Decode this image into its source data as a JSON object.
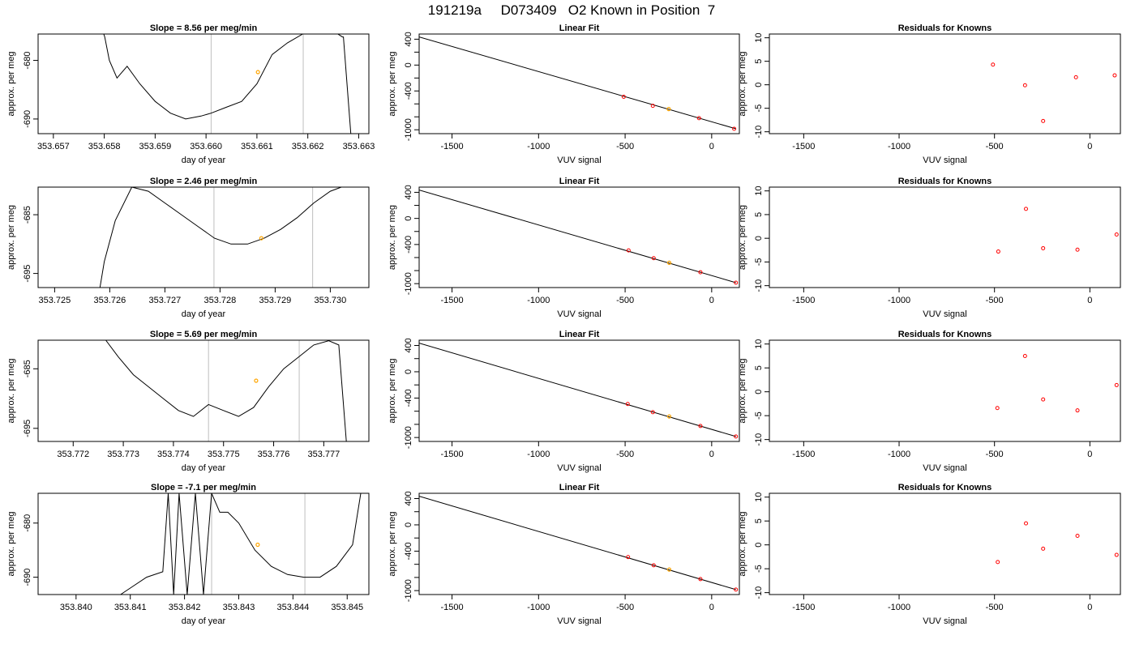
{
  "page_title": "191219a     D073409   O2 Known in Position  7",
  "colors": {
    "trace": "#000000",
    "fit_line": "#000000",
    "vline": "#bebebe",
    "known_point": "#ff0000",
    "unknown_point": "#ffa500",
    "axis": "#000000"
  },
  "chart_data": [
    {
      "id": "slope-1",
      "type": "line",
      "title": "Slope =  8.56  per meg/min",
      "xlabel": "day of year",
      "ylabel": "approx. per meg",
      "xlim": [
        353.6567,
        353.6632
      ],
      "ylim": [
        -692.5,
        -675.5
      ],
      "xticks": [
        353.657,
        353.658,
        353.659,
        353.66,
        353.661,
        353.662,
        353.663
      ],
      "xtick_labels": [
        "353.657",
        "353.658",
        "353.659",
        "353.660",
        "353.661",
        "353.662",
        "353.663"
      ],
      "yticks": [
        -690,
        -680
      ],
      "ytick_labels": [
        "-690",
        "-680"
      ],
      "vlines": [
        353.6601,
        353.66191
      ],
      "trace_x": [
        353.65797,
        353.65801,
        353.6581,
        353.65825,
        353.65845,
        353.6587,
        353.659,
        353.6593,
        353.6596,
        353.6599,
        353.6601,
        353.6604,
        353.6607,
        353.661,
        353.6613,
        353.6616,
        353.6619,
        353.6622,
        353.6625,
        353.66268,
        353.6627,
        353.66285
      ],
      "trace_y": [
        -675,
        -676,
        -680,
        -683,
        -681,
        -684,
        -687,
        -689,
        -690,
        -689.5,
        -689,
        -688,
        -687,
        -684,
        -679,
        -677,
        -675.5,
        -675,
        -675,
        -676,
        -676,
        -693
      ],
      "marker": {
        "x": 353.66102,
        "y": -682
      }
    },
    {
      "id": "fit-1",
      "type": "scatter",
      "title": "Linear Fit",
      "xlabel": "VUV signal",
      "ylabel": "approx. per meg",
      "xlim": [
        -1690,
        160
      ],
      "ylim": [
        -1060,
        480
      ],
      "xticks": [
        -1500,
        -1000,
        -500,
        0
      ],
      "xtick_labels": [
        "-1500",
        "-1000",
        "-500",
        "0"
      ],
      "yticks": [
        400,
        0,
        -400,
        -1000
      ],
      "ytick_labels": [
        "400",
        "0",
        "-400",
        "-1000"
      ],
      "yticks_minor": [
        200,
        -200,
        -600,
        -800
      ],
      "fit_line": {
        "x": [
          -1690,
          140
        ],
        "y": [
          435,
          -985
        ]
      },
      "known_points": {
        "x": [
          -508,
          -340,
          130,
          -73
        ],
        "y": [
          -490,
          -630,
          -985,
          -820
        ]
      },
      "unknown_points": {
        "x": [
          -248
        ],
        "y": [
          -680
        ]
      }
    },
    {
      "id": "resid-1",
      "type": "scatter",
      "title": "Residuals for Knowns",
      "xlabel": "VUV signal",
      "ylabel": "approx. per meg",
      "xlim": [
        -1680,
        160
      ],
      "ylim": [
        -10.4,
        10.8
      ],
      "xticks": [
        -1500,
        -1000,
        -500,
        0
      ],
      "xtick_labels": [
        "-1500",
        "-1000",
        "-500",
        "0"
      ],
      "yticks": [
        10,
        5,
        0,
        -5,
        -10
      ],
      "ytick_labels": [
        "10",
        "5",
        "0",
        "-5",
        "-10"
      ],
      "known_points": {
        "x": [
          -508,
          -340,
          -245,
          -73,
          130
        ],
        "y": [
          4.3,
          -0.1,
          -7.7,
          1.6,
          2.0
        ]
      }
    },
    {
      "id": "slope-2",
      "type": "line",
      "title": "Slope =  2.46  per meg/min",
      "xlabel": "day of year",
      "ylabel": "approx. per meg",
      "xlim": [
        353.7247,
        353.7307
      ],
      "ylim": [
        -697.4,
        -680.3
      ],
      "xticks": [
        353.725,
        353.726,
        353.727,
        353.728,
        353.729,
        353.73
      ],
      "xtick_labels": [
        "353.725",
        "353.726",
        "353.727",
        "353.728",
        "353.729",
        "353.730"
      ],
      "yticks": [
        -695,
        -685
      ],
      "ytick_labels": [
        "-695",
        "-685"
      ],
      "vlines": [
        353.72789,
        353.72968
      ],
      "trace_x": [
        353.72582,
        353.7259,
        353.7261,
        353.7264,
        353.7267,
        353.727,
        353.7273,
        353.7276,
        353.7279,
        353.7282,
        353.7285,
        353.7288,
        353.7291,
        353.7294,
        353.7297,
        353.73,
        353.7302
      ],
      "trace_y": [
        -697.5,
        -693,
        -686,
        -680.3,
        -681,
        -683,
        -685,
        -687,
        -689,
        -690,
        -690,
        -689,
        -687.5,
        -685.5,
        -683,
        -681,
        -680.3
      ],
      "marker": {
        "x": 353.72875,
        "y": -689
      }
    },
    {
      "id": "fit-2",
      "type": "scatter",
      "title": "Linear Fit",
      "xlabel": "VUV signal",
      "ylabel": "approx. per meg",
      "xlim": [
        -1690,
        160
      ],
      "ylim": [
        -1060,
        480
      ],
      "xticks": [
        -1500,
        -1000,
        -500,
        0
      ],
      "xtick_labels": [
        "-1500",
        "-1000",
        "-500",
        "0"
      ],
      "yticks": [
        400,
        0,
        -400,
        -1000
      ],
      "ytick_labels": [
        "400",
        "0",
        "-400",
        "-1000"
      ],
      "yticks_minor": [
        200,
        -200,
        -600,
        -800
      ],
      "fit_line": {
        "x": [
          -1690,
          140
        ],
        "y": [
          435,
          -985
        ]
      },
      "known_points": {
        "x": [
          -480,
          -335,
          140,
          -65
        ],
        "y": [
          -490,
          -610,
          -985,
          -825
        ]
      },
      "unknown_points": {
        "x": [
          -245
        ],
        "y": [
          -680
        ]
      }
    },
    {
      "id": "resid-2",
      "type": "scatter",
      "title": "Residuals for Knowns",
      "xlabel": "VUV signal",
      "ylabel": "approx. per meg",
      "xlim": [
        -1680,
        160
      ],
      "ylim": [
        -10.4,
        10.8
      ],
      "xticks": [
        -1500,
        -1000,
        -500,
        0
      ],
      "xtick_labels": [
        "-1500",
        "-1000",
        "-500",
        "0"
      ],
      "yticks": [
        10,
        5,
        0,
        -5,
        -10
      ],
      "ytick_labels": [
        "10",
        "5",
        "0",
        "-5",
        "-10"
      ],
      "known_points": {
        "x": [
          -480,
          -335,
          -245,
          -65,
          140
        ],
        "y": [
          -2.8,
          6.2,
          -2.1,
          -2.4,
          0.8
        ]
      }
    },
    {
      "id": "slope-3",
      "type": "line",
      "title": "Slope =  5.69  per meg/min",
      "xlabel": "day of year",
      "ylabel": "approx. per meg",
      "xlim": [
        353.7713,
        353.7779
      ],
      "ylim": [
        -697.2,
        -680.2
      ],
      "xticks": [
        353.772,
        353.773,
        353.774,
        353.775,
        353.776,
        353.777
      ],
      "xtick_labels": [
        "353.772",
        "353.773",
        "353.774",
        "353.775",
        "353.776",
        "353.777"
      ],
      "yticks": [
        -695,
        -685
      ],
      "ytick_labels": [
        "-695",
        "-685"
      ],
      "vlines": [
        353.7747,
        353.77651
      ],
      "trace_x": [
        353.77265,
        353.7729,
        353.7732,
        353.7735,
        353.7738,
        353.7741,
        353.7744,
        353.7747,
        353.775,
        353.7753,
        353.7756,
        353.7759,
        353.7762,
        353.7765,
        353.7768,
        353.7771,
        353.7773,
        353.77745
      ],
      "trace_y": [
        -680.2,
        -683,
        -686,
        -688,
        -690,
        -692,
        -693,
        -691,
        -692,
        -693,
        -691.5,
        -688,
        -685,
        -683,
        -681,
        -680.3,
        -681,
        -697.2
      ],
      "marker": {
        "x": 353.77565,
        "y": -687
      }
    },
    {
      "id": "fit-3",
      "type": "scatter",
      "title": "Linear Fit",
      "xlabel": "VUV signal",
      "ylabel": "approx. per meg",
      "xlim": [
        -1690,
        160
      ],
      "ylim": [
        -1060,
        480
      ],
      "xticks": [
        -1500,
        -1000,
        -500,
        0
      ],
      "xtick_labels": [
        "-1500",
        "-1000",
        "-500",
        "0"
      ],
      "yticks": [
        400,
        0,
        -400,
        -1000
      ],
      "ytick_labels": [
        "400",
        "0",
        "-400",
        "-1000"
      ],
      "yticks_minor": [
        200,
        -200,
        -600,
        -800
      ],
      "fit_line": {
        "x": [
          -1690,
          140
        ],
        "y": [
          435,
          -985
        ]
      },
      "known_points": {
        "x": [
          -485,
          -340,
          140,
          -65
        ],
        "y": [
          -490,
          -615,
          -985,
          -825
        ]
      },
      "unknown_points": {
        "x": [
          -245
        ],
        "y": [
          -680
        ]
      }
    },
    {
      "id": "resid-3",
      "type": "scatter",
      "title": "Residuals for Knowns",
      "xlabel": "VUV signal",
      "ylabel": "approx. per meg",
      "xlim": [
        -1680,
        160
      ],
      "ylim": [
        -10.4,
        10.8
      ],
      "xticks": [
        -1500,
        -1000,
        -500,
        0
      ],
      "xtick_labels": [
        "-1500",
        "-1000",
        "-500",
        "0"
      ],
      "yticks": [
        10,
        5,
        0,
        -5,
        -10
      ],
      "ytick_labels": [
        "10",
        "5",
        "0",
        "-5",
        "-10"
      ],
      "known_points": {
        "x": [
          -485,
          -340,
          -245,
          -65,
          140
        ],
        "y": [
          -3.4,
          7.5,
          -1.6,
          -3.9,
          1.4
        ]
      }
    },
    {
      "id": "slope-4",
      "type": "line",
      "title": "Slope =  -7.1  per meg/min",
      "xlabel": "day of year",
      "ylabel": "approx. per meg",
      "xlim": [
        353.8393,
        353.8454
      ],
      "ylim": [
        -693.2,
        -674.5
      ],
      "xticks": [
        353.84,
        353.841,
        353.842,
        353.843,
        353.844,
        353.845
      ],
      "xtick_labels": [
        "353.840",
        "353.841",
        "353.842",
        "353.843",
        "353.844",
        "353.845"
      ],
      "yticks": [
        -690,
        -680
      ],
      "ytick_labels": [
        "-690",
        "-680"
      ],
      "vlines": [
        353.8425,
        353.84422
      ],
      "trace_x": [
        353.84082,
        353.841,
        353.8413,
        353.8416,
        353.8417,
        353.8418,
        353.8419,
        353.84205,
        353.8422,
        353.84235,
        353.8425,
        353.84265,
        353.8428,
        353.843,
        353.8433,
        353.8436,
        353.8439,
        353.8442,
        353.8445,
        353.8448,
        353.8451,
        353.84525
      ],
      "trace_y": [
        -693.2,
        -692,
        -690,
        -689,
        -674.5,
        -693.2,
        -674.5,
        -693.2,
        -674.5,
        -693.2,
        -674.5,
        -678,
        -678,
        -680,
        -685,
        -688,
        -689.5,
        -690,
        -690,
        -688,
        -684,
        -674.5
      ],
      "marker": {
        "x": 353.84335,
        "y": -684
      }
    },
    {
      "id": "fit-4",
      "type": "scatter",
      "title": "Linear Fit",
      "xlabel": "VUV signal",
      "ylabel": "approx. per meg",
      "xlim": [
        -1690,
        160
      ],
      "ylim": [
        -1060,
        480
      ],
      "xticks": [
        -1500,
        -1000,
        -500,
        0
      ],
      "xtick_labels": [
        "-1500",
        "-1000",
        "-500",
        "0"
      ],
      "yticks": [
        400,
        0,
        -400,
        -1000
      ],
      "ytick_labels": [
        "400",
        "0",
        "-400",
        "-1000"
      ],
      "yticks_minor": [
        200,
        -200,
        -600,
        -800
      ],
      "fit_line": {
        "x": [
          -1690,
          140
        ],
        "y": [
          435,
          -985
        ]
      },
      "known_points": {
        "x": [
          -483,
          -335,
          140,
          -65
        ],
        "y": [
          -490,
          -615,
          -985,
          -825
        ]
      },
      "unknown_points": {
        "x": [
          -245
        ],
        "y": [
          -680
        ]
      }
    },
    {
      "id": "resid-4",
      "type": "scatter",
      "title": "Residuals for Knowns",
      "xlabel": "VUV signal",
      "ylabel": "approx. per meg",
      "xlim": [
        -1680,
        160
      ],
      "ylim": [
        -10.4,
        10.8
      ],
      "xticks": [
        -1500,
        -1000,
        -500,
        0
      ],
      "xtick_labels": [
        "-1500",
        "-1000",
        "-500",
        "0"
      ],
      "yticks": [
        10,
        5,
        0,
        -5,
        -10
      ],
      "ytick_labels": [
        "10",
        "5",
        "0",
        "-5",
        "-10"
      ],
      "known_points": {
        "x": [
          -483,
          -335,
          -245,
          -65,
          140
        ],
        "y": [
          -3.6,
          4.5,
          -0.8,
          1.9,
          -2.1
        ]
      }
    }
  ]
}
